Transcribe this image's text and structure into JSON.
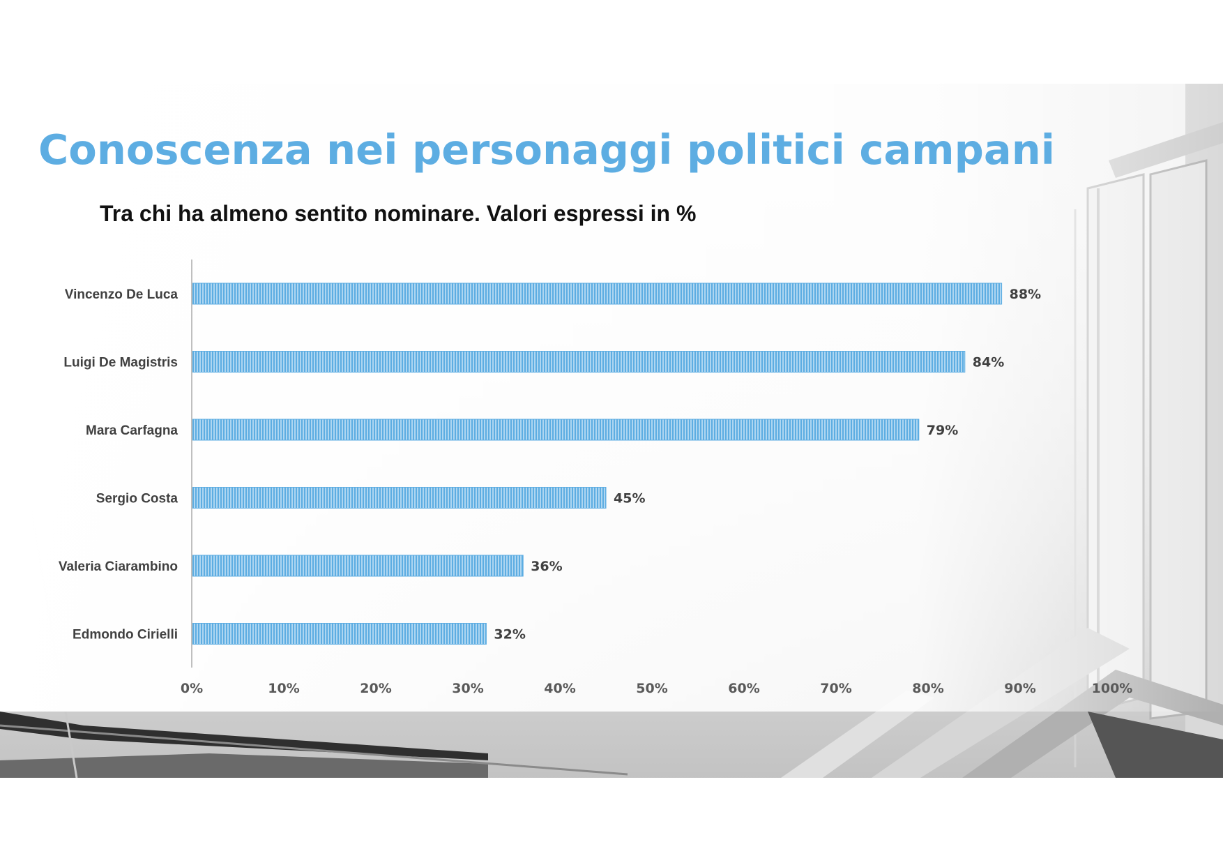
{
  "title": "Conoscenza nei personaggi politici campani",
  "subtitle": "Tra chi ha almeno sentito nominare. Valori espressi in %",
  "colors": {
    "title": "#5dade2",
    "bar": "#5dade2",
    "bar_stripe": "#aed6f1",
    "axis": "#bfbfbf",
    "label": "#404040"
  },
  "chart_data": {
    "type": "bar",
    "orientation": "horizontal",
    "categories": [
      "Vincenzo De Luca",
      "Luigi De Magistris",
      "Mara Carfagna",
      "Sergio Costa",
      "Valeria Ciarambino",
      "Edmondo Cirielli"
    ],
    "values": [
      88,
      84,
      79,
      45,
      36,
      32
    ],
    "value_labels": [
      "88%",
      "84%",
      "79%",
      "45%",
      "36%",
      "32%"
    ],
    "xlim": [
      0,
      100
    ],
    "xticks": [
      "0%",
      "10%",
      "20%",
      "30%",
      "40%",
      "50%",
      "60%",
      "70%",
      "80%",
      "90%",
      "100%"
    ],
    "grid": false,
    "legend": "none"
  }
}
